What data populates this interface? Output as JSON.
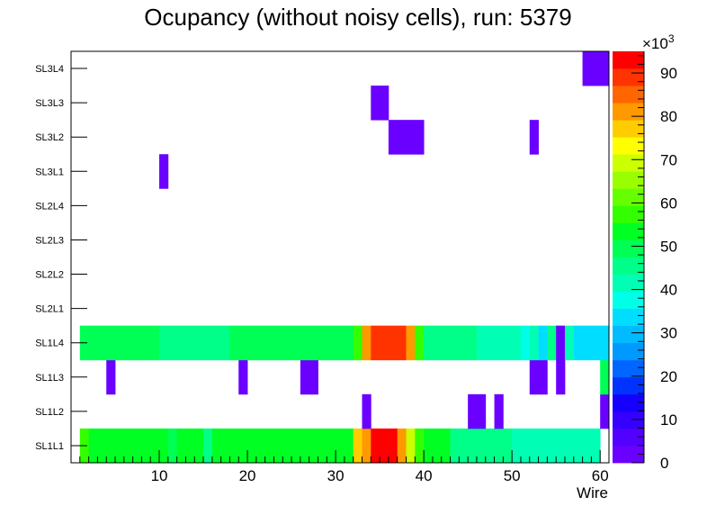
{
  "chart_data": {
    "type": "heatmap",
    "title": "Ocupancy (without noisy cells), run: 5379",
    "xlabel": "Wire",
    "x_range": [
      0,
      61
    ],
    "x_ticks": [
      10,
      20,
      30,
      40,
      50,
      60
    ],
    "x_tick_labels": [
      "10",
      "20",
      "30",
      "40",
      "50",
      "60"
    ],
    "y_categories": [
      "SL1L1",
      "SL1L2",
      "SL1L3",
      "SL1L4",
      "SL2L1",
      "SL2L2",
      "SL2L3",
      "SL2L4",
      "SL3L1",
      "SL3L2",
      "SL3L3",
      "SL3L4"
    ],
    "z_range": [
      0,
      95
    ],
    "z_unit_label": "×10",
    "z_unit_exponent": "3",
    "z_ticks": [
      0,
      10,
      20,
      30,
      40,
      50,
      60,
      70,
      80,
      90
    ],
    "z_tick_labels": [
      "0",
      "10",
      "20",
      "30",
      "40",
      "50",
      "60",
      "70",
      "80",
      "90"
    ],
    "palette": [
      "#6a00ff",
      "#5200ff",
      "#3500ff",
      "#1500ff",
      "#0033ff",
      "#0066ff",
      "#0099ff",
      "#00bbff",
      "#00ddff",
      "#00ffe8",
      "#00ffb5",
      "#00ff88",
      "#00ff55",
      "#00ff22",
      "#33ff00",
      "#66ff00",
      "#99ff00",
      "#ccff00",
      "#ffff00",
      "#ffcc00",
      "#ff9900",
      "#ff6600",
      "#ff3300",
      "#ff0000"
    ],
    "cells": [
      {
        "layer": "SL1L1",
        "runs": [
          [
            1,
            2,
            58
          ],
          [
            2,
            9,
            54
          ],
          [
            9,
            11,
            52
          ],
          [
            11,
            12,
            50
          ],
          [
            12,
            15,
            52
          ],
          [
            15,
            16,
            46
          ],
          [
            16,
            19,
            52
          ],
          [
            19,
            25,
            54
          ],
          [
            25,
            27,
            52
          ],
          [
            27,
            32,
            54
          ],
          [
            32,
            33,
            78
          ],
          [
            33,
            34,
            82
          ],
          [
            34,
            37,
            93
          ],
          [
            37,
            38,
            82
          ],
          [
            38,
            39,
            68
          ],
          [
            39,
            40,
            56
          ],
          [
            40,
            43,
            52
          ],
          [
            43,
            50,
            44
          ],
          [
            50,
            60,
            42
          ]
        ]
      },
      {
        "layer": "SL1L2",
        "runs": [
          [
            33,
            34,
            3
          ],
          [
            45,
            47,
            3
          ],
          [
            48,
            49,
            3
          ],
          [
            60,
            61,
            3
          ]
        ]
      },
      {
        "layer": "SL1L3",
        "runs": [
          [
            4,
            5,
            3
          ],
          [
            19,
            20,
            3
          ],
          [
            26,
            28,
            3
          ],
          [
            52,
            54,
            3
          ],
          [
            55,
            56,
            3
          ],
          [
            60,
            61,
            50
          ]
        ]
      },
      {
        "layer": "SL1L4",
        "runs": [
          [
            1,
            2,
            50
          ],
          [
            2,
            10,
            50
          ],
          [
            10,
            18,
            44
          ],
          [
            18,
            32,
            50
          ],
          [
            32,
            33,
            58
          ],
          [
            33,
            34,
            82
          ],
          [
            34,
            38,
            90
          ],
          [
            38,
            39,
            80
          ],
          [
            39,
            40,
            58
          ],
          [
            40,
            46,
            44
          ],
          [
            46,
            51,
            42
          ],
          [
            51,
            52,
            38
          ],
          [
            52,
            53,
            42
          ],
          [
            53,
            54,
            34
          ],
          [
            54,
            55,
            44
          ],
          [
            55,
            56,
            3
          ],
          [
            56,
            57,
            42
          ],
          [
            57,
            61,
            35
          ]
        ]
      },
      {
        "layer": "SL3L1",
        "runs": [
          [
            10,
            11,
            3
          ]
        ]
      },
      {
        "layer": "SL3L2",
        "runs": [
          [
            36,
            40,
            3
          ],
          [
            52,
            53,
            3
          ]
        ]
      },
      {
        "layer": "SL3L3",
        "runs": [
          [
            34,
            36,
            3
          ]
        ]
      },
      {
        "layer": "SL3L4",
        "runs": [
          [
            58,
            61,
            3
          ]
        ]
      }
    ]
  }
}
